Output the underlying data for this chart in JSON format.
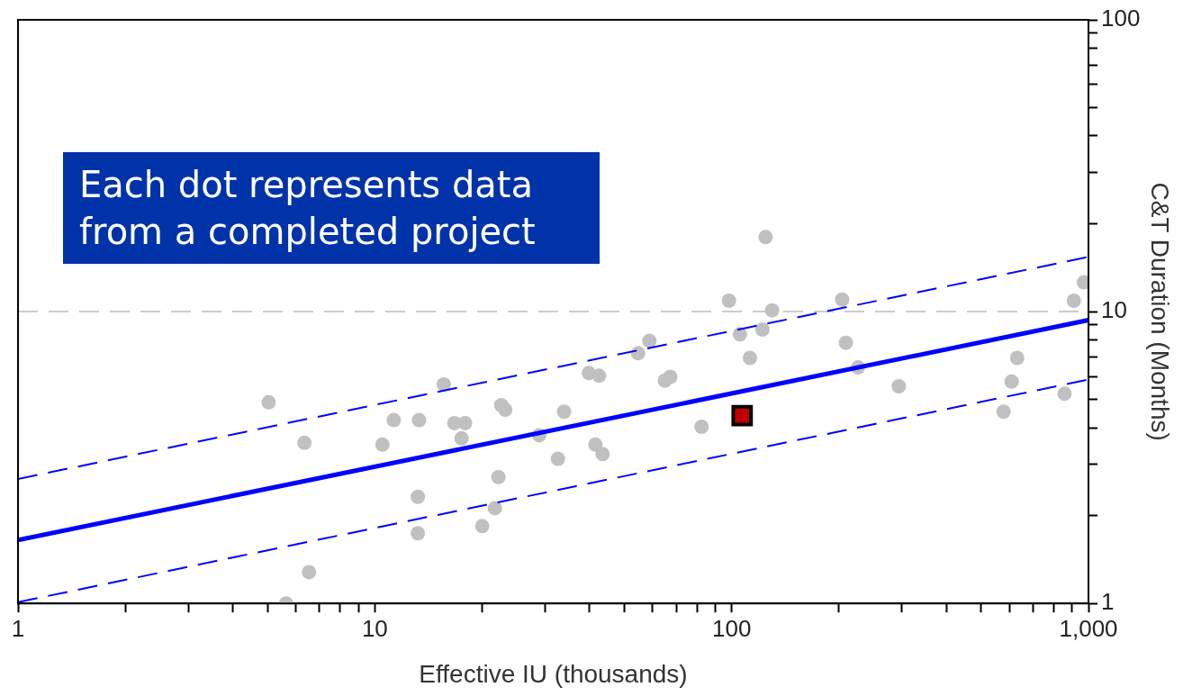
{
  "chart_data": {
    "type": "scatter",
    "xlabel": "Effective IU (thousands)",
    "ylabel": "C&T Duration (Months)",
    "log": "xy",
    "grid": false,
    "legend": false,
    "xlim": [
      1,
      1000
    ],
    "ylim": [
      1,
      100
    ],
    "xticks": [
      1,
      {
        "value": 2,
        "label": null
      },
      {
        "value": 3,
        "label": null
      },
      {
        "value": 4,
        "label": null
      },
      {
        "value": 5,
        "label": null
      },
      {
        "value": 6,
        "label": null
      },
      {
        "value": 7,
        "label": null
      },
      {
        "value": 8,
        "label": null
      },
      {
        "value": 9,
        "label": null
      },
      10,
      {
        "value": 20,
        "label": null
      },
      {
        "value": 30,
        "label": null
      },
      {
        "value": 40,
        "label": null
      },
      {
        "value": 50,
        "label": null
      },
      {
        "value": 60,
        "label": null
      },
      {
        "value": 70,
        "label": null
      },
      {
        "value": 80,
        "label": null
      },
      {
        "value": 90,
        "label": null
      },
      100,
      {
        "value": 200,
        "label": null
      },
      {
        "value": 300,
        "label": null
      },
      {
        "value": 400,
        "label": null
      },
      {
        "value": 500,
        "label": null
      },
      {
        "value": 600,
        "label": null
      },
      {
        "value": 700,
        "label": null
      },
      {
        "value": 800,
        "label": null
      },
      {
        "value": 900,
        "label": null
      },
      {
        "value": 1000,
        "label": "1,000"
      }
    ],
    "yticks": [
      1,
      {
        "value": 2,
        "label": null
      },
      {
        "value": 3,
        "label": null
      },
      {
        "value": 4,
        "label": null
      },
      {
        "value": 5,
        "label": null
      },
      {
        "value": 6,
        "label": null
      },
      {
        "value": 7,
        "label": null
      },
      {
        "value": 8,
        "label": null
      },
      {
        "value": 9,
        "label": null
      },
      10,
      {
        "value": 20,
        "label": null
      },
      {
        "value": 30,
        "label": null
      },
      {
        "value": 40,
        "label": null
      },
      {
        "value": 50,
        "label": null
      },
      {
        "value": 60,
        "label": null
      },
      {
        "value": 70,
        "label": null
      },
      {
        "value": 80,
        "label": null
      },
      {
        "value": 90,
        "label": null
      },
      100
    ],
    "ref_lines": [
      {
        "axis": "y",
        "value": 10,
        "color": "#cccccc",
        "line_style": "dashed"
      }
    ],
    "annotations": [
      "Each dot represents data from a completed project"
    ],
    "series": [
      {
        "type": "scatter",
        "marker": "circle",
        "color": "#c0c0c0",
        "x": [
          5.04,
          6.35,
          6.54,
          5.64,
          11.3,
          10.5,
          13.3,
          13.2,
          13.2,
          15.6,
          16.7,
          17.9,
          17.5,
          20.0,
          21.7,
          22.2,
          22.6,
          23.2,
          28.9,
          32.6,
          33.9,
          39.8,
          42.5,
          41.5,
          43.5,
          54.7,
          58.8,
          65.0,
          67.3,
          82.3,
          98.3,
          105.5,
          112.5,
          122,
          124.5,
          129.8,
          204,
          209,
          226,
          294,
          578,
          609,
          631,
          857,
          910,
          971
        ],
        "values": [
          4.89,
          3.55,
          1.28,
          1.0,
          4.25,
          3.5,
          4.25,
          2.32,
          1.74,
          5.63,
          4.15,
          4.15,
          3.68,
          1.84,
          2.12,
          2.71,
          4.78,
          4.61,
          3.77,
          3.13,
          4.54,
          6.16,
          6.03,
          3.5,
          3.25,
          7.2,
          7.94,
          5.8,
          5.98,
          4.03,
          10.9,
          8.36,
          6.94,
          8.68,
          18.0,
          10.1,
          11.0,
          7.82,
          6.44,
          5.55,
          4.54,
          5.76,
          6.94,
          5.23,
          10.9,
          12.6
        ]
      },
      {
        "type": "line",
        "marker": "none",
        "line_style": "solid",
        "color": "#0000ff",
        "x": [
          1,
          1000
        ],
        "values": [
          1.65,
          9.35
        ]
      },
      {
        "type": "line",
        "marker": "none",
        "line_style": "dashed",
        "color": "#0000ff",
        "x": [
          1,
          1000
        ],
        "values": [
          2.67,
          15.4
        ]
      },
      {
        "type": "line",
        "marker": "none",
        "line_style": "dashed",
        "color": "#0000ff",
        "x": [
          1,
          1000
        ],
        "values": [
          1.01,
          5.85
        ]
      },
      {
        "type": "scatter",
        "marker": "square",
        "color": "#c00000",
        "x": [
          107
        ],
        "values": [
          4.4
        ]
      }
    ]
  }
}
